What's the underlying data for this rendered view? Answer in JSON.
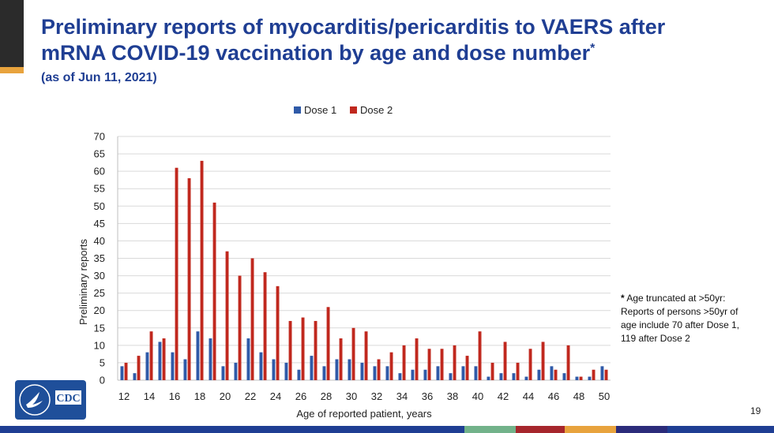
{
  "slide": {
    "title_line1": "Preliminary reports of myocarditis/pericarditis to VAERS after",
    "title_line2": "mRNA COVID-19 vaccination by age and dose number",
    "title_mark": "*",
    "subtitle": "(as of Jun 11, 2021)",
    "footnote_mark": "*",
    "footnote_text": "Age truncated at >50yr: Reports of persons >50yr of age include 70 after Dose 1, 119 after Dose 2",
    "page_number": "19",
    "logo_text": "CDC",
    "colors": {
      "title": "#1f3e93",
      "dose1": "#2f5aa8",
      "dose2": "#c0281e",
      "logo_bg": "#1f4f9a",
      "bottom_bar": [
        "#1f3e93",
        "#1f3e93",
        "#72b28a",
        "#a6262c",
        "#e8a33d",
        "#2b2b7a",
        "#1f3e93"
      ]
    }
  },
  "chart_data": {
    "type": "bar",
    "x": [
      12,
      13,
      14,
      15,
      16,
      17,
      18,
      19,
      20,
      21,
      22,
      23,
      24,
      25,
      26,
      27,
      28,
      29,
      30,
      31,
      32,
      33,
      34,
      35,
      36,
      37,
      38,
      39,
      40,
      41,
      42,
      43,
      44,
      45,
      46,
      47,
      48,
      49,
      50
    ],
    "tick_labels": [
      "12",
      "14",
      "16",
      "18",
      "20",
      "22",
      "24",
      "26",
      "28",
      "30",
      "32",
      "34",
      "36",
      "38",
      "40",
      "42",
      "44",
      "46",
      "48",
      "50"
    ],
    "series": [
      {
        "name": "Dose 1",
        "values": [
          4,
          2,
          8,
          11,
          8,
          6,
          14,
          12,
          4,
          5,
          12,
          8,
          6,
          5,
          3,
          7,
          4,
          6,
          6,
          5,
          4,
          4,
          2,
          3,
          3,
          4,
          2,
          4,
          4,
          1,
          2,
          2,
          1,
          3,
          4,
          2,
          1,
          1,
          4
        ]
      },
      {
        "name": "Dose 2",
        "values": [
          5,
          7,
          14,
          12,
          61,
          58,
          63,
          51,
          37,
          30,
          35,
          31,
          27,
          17,
          18,
          17,
          21,
          12,
          15,
          14,
          6,
          8,
          10,
          12,
          9,
          9,
          10,
          7,
          14,
          5,
          11,
          5,
          9,
          11,
          3,
          10,
          1,
          3,
          3
        ]
      }
    ],
    "xlabel": "Age of reported patient, years",
    "ylabel": "Preliminary reports",
    "ylim": [
      0,
      70
    ],
    "yticks": [
      0,
      5,
      10,
      15,
      20,
      25,
      30,
      35,
      40,
      45,
      50,
      55,
      60,
      65,
      70
    ],
    "grid": true,
    "legend_position": "top-center"
  }
}
